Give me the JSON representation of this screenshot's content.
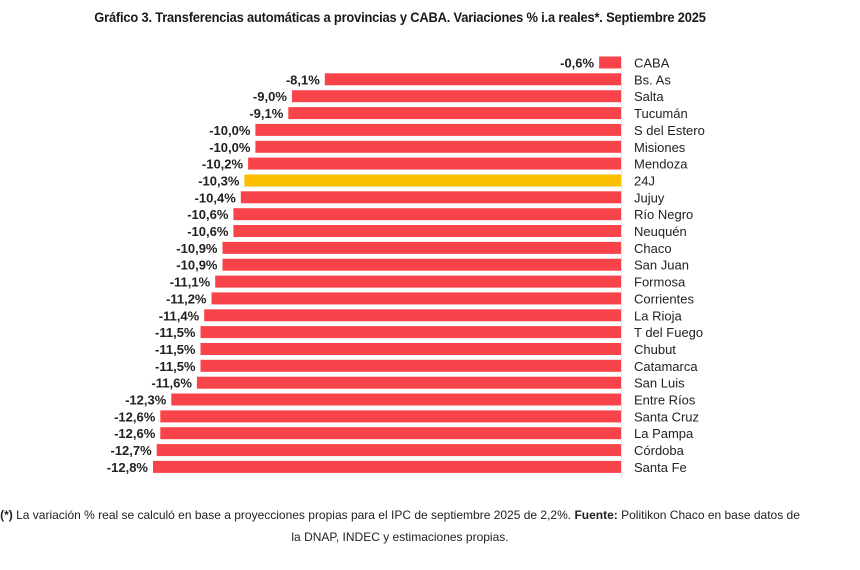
{
  "chart_data": {
    "type": "bar",
    "orientation": "horizontal",
    "title": "Gráfico 3. Transferencias automáticas a provincias y CABA. Variaciones % i.a reales*. Septiembre 2025",
    "xlabel": "",
    "ylabel": "",
    "xlim": [
      -12.8,
      0
    ],
    "grid": false,
    "legend": "none",
    "categories": [
      "CABA",
      "Bs. As",
      "Salta",
      "Tucumán",
      "S del Estero",
      "Misiones",
      "Mendoza",
      "24J",
      "Jujuy",
      "Río Negro",
      "Neuquén",
      "Chaco",
      "San Juan",
      "Formosa",
      "Corrientes",
      "La Rioja",
      "T del Fuego",
      "Chubut",
      "Catamarca",
      "San Luis",
      "Entre Ríos",
      "Santa Cruz",
      "La Pampa",
      "Córdoba",
      "Santa Fe"
    ],
    "values": [
      -0.6,
      -8.1,
      -9.0,
      -9.1,
      -10.0,
      -10.0,
      -10.2,
      -10.3,
      -10.4,
      -10.6,
      -10.6,
      -10.9,
      -10.9,
      -11.1,
      -11.2,
      -11.4,
      -11.5,
      -11.5,
      -11.5,
      -11.6,
      -12.3,
      -12.6,
      -12.6,
      -12.7,
      -12.8
    ],
    "value_labels": [
      "-0,6%",
      "-8,1%",
      "-9,0%",
      "-9,1%",
      "-10,0%",
      "-10,0%",
      "-10,2%",
      "-10,3%",
      "-10,4%",
      "-10,6%",
      "-10,6%",
      "-10,9%",
      "-10,9%",
      "-11,1%",
      "-11,2%",
      "-11,4%",
      "-11,5%",
      "-11,5%",
      "-11,5%",
      "-11,6%",
      "-12,3%",
      "-12,6%",
      "-12,6%",
      "-12,7%",
      "-12,8%"
    ],
    "highlight_category": "24J",
    "colors": {
      "default": "#f9434a",
      "highlight": "#fbbf00"
    }
  },
  "footnote": {
    "prefix": "(*)",
    "text": " La variación % real se calculó en base a proyecciones propias para el IPC de septiembre 2025 de 2,2%. ",
    "source_label": "Fuente:",
    "source_text": " Politikon Chaco en base datos de la DNAP, INDEC y estimaciones propias."
  }
}
